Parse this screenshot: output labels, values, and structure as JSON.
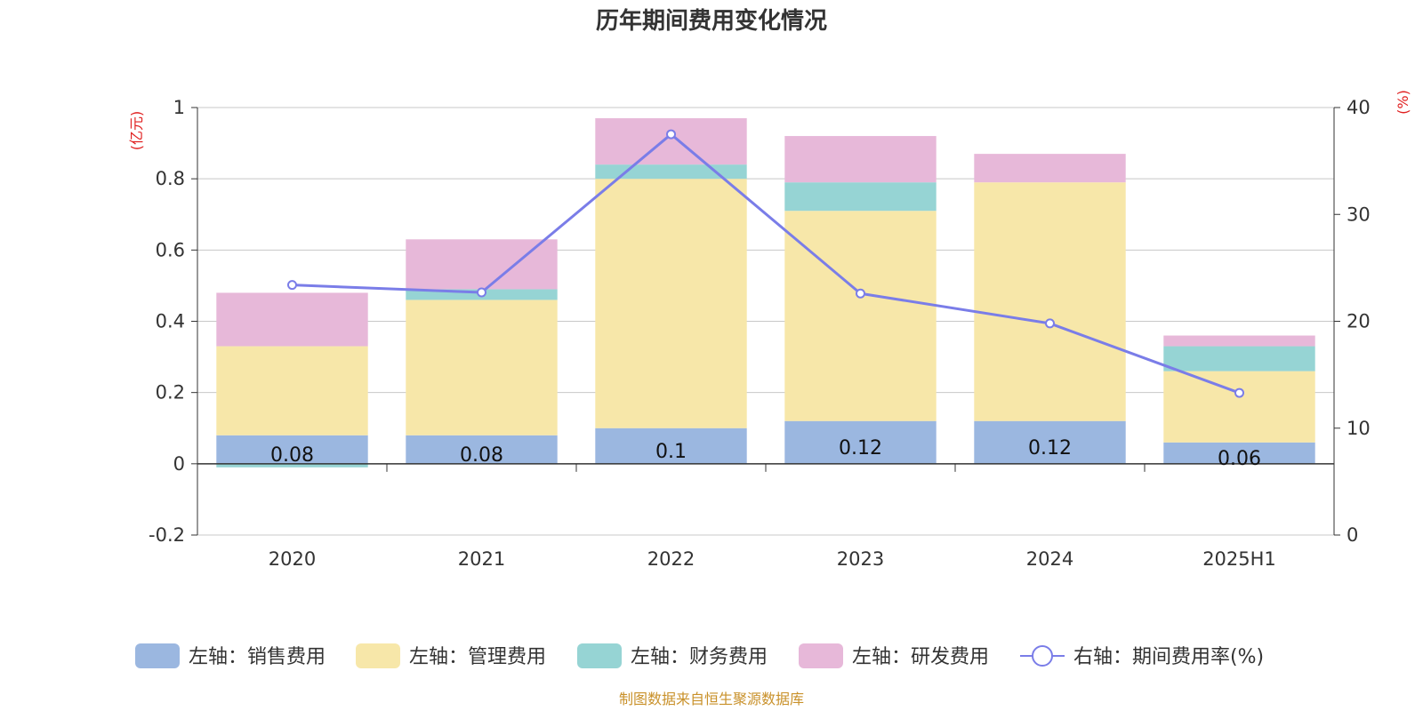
{
  "title": "历年期间费用变化情况",
  "source_note": "制图数据来自恒生聚源数据库",
  "colors": {
    "sales": "#9bb7e0",
    "admin": "#f7e7a9",
    "finance": "#96d4d4",
    "rd": "#e7b8d9",
    "rate": "#7a7de8",
    "grid": "#c8c8c8",
    "axis": "#333333",
    "unit": "#e02020",
    "source": "#c9912a"
  },
  "chart_data": {
    "type": "bar",
    "stacked": true,
    "title": "历年期间费用变化情况",
    "categories": [
      "2020",
      "2021",
      "2022",
      "2023",
      "2024",
      "2025H1"
    ],
    "left_axis": {
      "unit": "(亿元)",
      "ylim": [
        -0.2,
        1
      ],
      "ticks": [
        -0.2,
        0,
        0.2,
        0.4,
        0.6,
        0.8,
        1
      ]
    },
    "right_axis": {
      "unit": "(%)",
      "ylim": [
        0,
        40
      ],
      "ticks": [
        0,
        10,
        20,
        30,
        40
      ]
    },
    "grid": true,
    "legend_position": "bottom",
    "series": [
      {
        "key": "sales",
        "name": "左轴：销售费用",
        "axis": "left",
        "kind": "bar",
        "values": [
          0.08,
          0.08,
          0.1,
          0.12,
          0.12,
          0.06
        ],
        "show_labels": true
      },
      {
        "key": "admin",
        "name": "左轴：管理费用",
        "axis": "left",
        "kind": "bar",
        "values": [
          0.25,
          0.38,
          0.7,
          0.59,
          0.67,
          0.2
        ]
      },
      {
        "key": "finance",
        "name": "左轴：财务费用",
        "axis": "left",
        "kind": "bar",
        "values": [
          -0.01,
          0.03,
          0.04,
          0.08,
          0.0,
          0.07
        ]
      },
      {
        "key": "rd",
        "name": "左轴：研发费用",
        "axis": "left",
        "kind": "bar",
        "values": [
          0.15,
          0.14,
          0.13,
          0.13,
          0.08,
          0.03
        ]
      },
      {
        "key": "rate",
        "name": "右轴：期间费用率(%)",
        "axis": "right",
        "kind": "line",
        "values": [
          23.4,
          22.7,
          37.5,
          22.6,
          19.8,
          13.3
        ]
      }
    ]
  }
}
